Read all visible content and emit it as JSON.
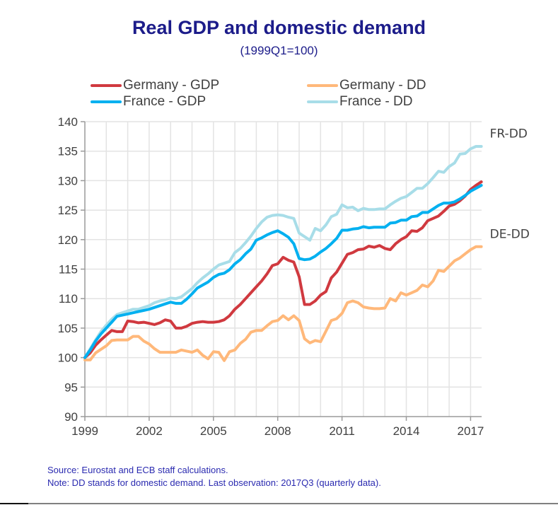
{
  "chart_data": {
    "type": "line",
    "title": "Real GDP and domestic demand",
    "subtitle": "(1999Q1=100)",
    "xlabel": "",
    "ylabel": "",
    "frequency": "quarterly",
    "x_start": "1999Q1",
    "x_end": "2017Q3",
    "xlim": [
      1999,
      2017.75
    ],
    "ylim": [
      90,
      140
    ],
    "y_ticks": [
      90,
      95,
      100,
      105,
      110,
      115,
      120,
      125,
      130,
      135,
      140
    ],
    "x_ticks": [
      1999,
      2002,
      2005,
      2008,
      2011,
      2014,
      2017
    ],
    "x_tick_labels": [
      "1999",
      "2002",
      "2005",
      "2008",
      "2011",
      "2014",
      "2017"
    ],
    "y_tick_labels": [
      "90",
      "95",
      "100",
      "105",
      "110",
      "115",
      "120",
      "125",
      "130",
      "135",
      "140"
    ],
    "grid": true,
    "legend_position": "top",
    "annotations": [
      {
        "text": "FR-DD",
        "x": 2017.9,
        "y": 138
      },
      {
        "text": "DE-DD",
        "x": 2017.9,
        "y": 121
      }
    ],
    "series": [
      {
        "name": "Germany - GDP",
        "color": "#d0393f",
        "values": [
          100.0,
          100.8,
          102.1,
          103.0,
          103.8,
          104.6,
          104.4,
          104.4,
          106.2,
          106.1,
          105.9,
          106.0,
          105.8,
          105.6,
          105.9,
          106.4,
          106.2,
          105.0,
          105.0,
          105.3,
          105.8,
          106.0,
          106.1,
          106.0,
          106.0,
          106.1,
          106.4,
          107.1,
          108.2,
          109.0,
          110.0,
          111.0,
          112.0,
          113.0,
          114.2,
          115.6,
          115.9,
          117.0,
          116.5,
          116.2,
          113.7,
          109.0,
          109.0,
          109.6,
          110.6,
          111.2,
          113.5,
          114.5,
          116.0,
          117.5,
          117.8,
          118.3,
          118.4,
          118.9,
          118.7,
          119.0,
          118.5,
          118.3,
          119.3,
          120.0,
          120.5,
          121.5,
          121.4,
          122.0,
          123.2,
          123.6,
          124.0,
          124.8,
          125.7,
          126.0,
          126.6,
          127.4,
          128.5,
          129.2,
          129.8
        ]
      },
      {
        "name": "France - GDP",
        "color": "#00b0f0",
        "values": [
          100.0,
          101.3,
          102.8,
          104.0,
          105.0,
          106.0,
          107.0,
          107.2,
          107.4,
          107.6,
          107.8,
          108.0,
          108.2,
          108.5,
          108.8,
          109.1,
          109.4,
          109.2,
          109.2,
          109.9,
          110.8,
          111.8,
          112.3,
          112.8,
          113.6,
          114.1,
          114.3,
          114.9,
          115.9,
          116.6,
          117.6,
          118.4,
          119.9,
          120.3,
          120.8,
          121.2,
          121.5,
          121.0,
          120.4,
          119.3,
          116.8,
          116.6,
          116.7,
          117.2,
          117.9,
          118.5,
          119.3,
          120.2,
          121.6,
          121.6,
          121.8,
          121.9,
          122.2,
          122.0,
          122.1,
          122.1,
          122.1,
          122.8,
          122.9,
          123.3,
          123.3,
          123.9,
          124.0,
          124.6,
          124.6,
          125.2,
          125.8,
          126.2,
          126.2,
          126.4,
          126.9,
          127.5,
          128.2,
          128.7,
          129.2
        ]
      },
      {
        "name": "Germany - DD",
        "color": "#ffb87a",
        "values": [
          99.6,
          99.6,
          100.8,
          101.4,
          102.0,
          102.9,
          103.0,
          103.0,
          103.0,
          103.6,
          103.6,
          102.8,
          102.3,
          101.5,
          100.9,
          100.9,
          100.9,
          100.9,
          101.3,
          101.1,
          100.9,
          101.3,
          100.4,
          99.8,
          101.0,
          100.9,
          99.5,
          101.0,
          101.3,
          102.4,
          103.1,
          104.3,
          104.6,
          104.6,
          105.4,
          106.1,
          106.3,
          107.1,
          106.4,
          107.1,
          106.3,
          103.2,
          102.5,
          102.9,
          102.7,
          104.5,
          106.3,
          106.6,
          107.5,
          109.3,
          109.6,
          109.3,
          108.6,
          108.4,
          108.3,
          108.3,
          108.4,
          110.0,
          109.6,
          111.0,
          110.6,
          111.0,
          111.4,
          112.3,
          112.0,
          113.0,
          114.8,
          114.6,
          115.5,
          116.4,
          116.9,
          117.6,
          118.3,
          118.8,
          118.8
        ]
      },
      {
        "name": "France - DD",
        "color": "#a8dde8",
        "values": [
          100.0,
          101.5,
          103.0,
          104.4,
          105.5,
          106.5,
          107.3,
          107.6,
          107.9,
          108.2,
          108.2,
          108.5,
          108.8,
          109.3,
          109.6,
          109.8,
          110.1,
          110.0,
          110.3,
          111.0,
          111.7,
          112.7,
          113.5,
          114.2,
          115.0,
          115.7,
          116.0,
          116.3,
          117.8,
          118.5,
          119.5,
          120.6,
          121.9,
          123.0,
          123.8,
          124.1,
          124.2,
          124.1,
          123.8,
          123.6,
          121.1,
          120.5,
          119.9,
          121.9,
          121.5,
          122.5,
          123.9,
          124.3,
          125.9,
          125.4,
          125.5,
          124.9,
          125.3,
          125.1,
          125.1,
          125.2,
          125.2,
          125.9,
          126.5,
          127.0,
          127.3,
          128.0,
          128.7,
          128.7,
          129.5,
          130.5,
          131.6,
          131.4,
          132.4,
          133.0,
          134.5,
          134.6,
          135.4,
          135.8,
          135.8
        ]
      }
    ]
  },
  "notes": {
    "source": "Source: Eurostat and ECB staff calculations.",
    "note": "Note: DD stands for domestic demand. Last observation: 2017Q3 (quarterly data)."
  }
}
